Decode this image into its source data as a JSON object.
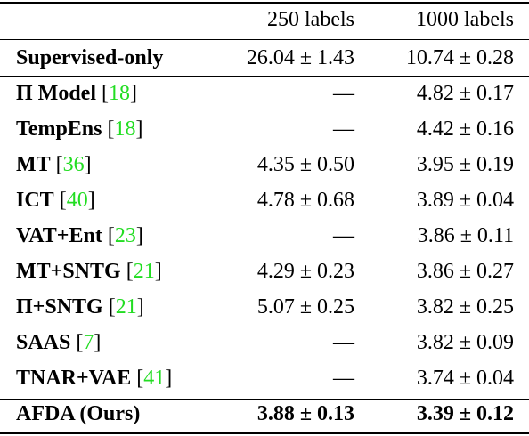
{
  "header": {
    "col_method": "",
    "col_250": "250 labels",
    "col_1000": "1000 labels"
  },
  "baseline": {
    "method": "Supervised-only",
    "v250": "26.04 ± 1.43",
    "v1000": "10.74 ± 0.28"
  },
  "rows": [
    {
      "method": "Π Model",
      "cite": "18",
      "v250": "—",
      "v1000": "4.82 ± 0.17"
    },
    {
      "method": "TempEns",
      "cite": "18",
      "v250": "—",
      "v1000": "4.42 ± 0.16"
    },
    {
      "method": "MT",
      "cite": "36",
      "v250": "4.35 ± 0.50",
      "v1000": "3.95 ± 0.19"
    },
    {
      "method": "ICT",
      "cite": "40",
      "v250": "4.78 ± 0.68",
      "v1000": "3.89 ± 0.04"
    },
    {
      "method": "VAT+Ent",
      "cite": "23",
      "v250": "—",
      "v1000": "3.86 ± 0.11"
    },
    {
      "method": "MT+SNTG",
      "cite": "21",
      "v250": "4.29 ± 0.23",
      "v1000": "3.86 ± 0.27"
    },
    {
      "method": "Π+SNTG",
      "cite": "21",
      "v250": "5.07 ± 0.25",
      "v1000": "3.82 ± 0.25"
    },
    {
      "method": "SAAS",
      "cite": "7",
      "v250": "—",
      "v1000": "3.82 ± 0.09"
    },
    {
      "method": "TNAR+VAE",
      "cite": "41",
      "v250": "—",
      "v1000": "3.74 ± 0.04"
    }
  ],
  "ours": {
    "method": "AFDA (Ours)",
    "v250": "3.88 ± 0.13",
    "v1000": "3.39 ± 0.12"
  }
}
